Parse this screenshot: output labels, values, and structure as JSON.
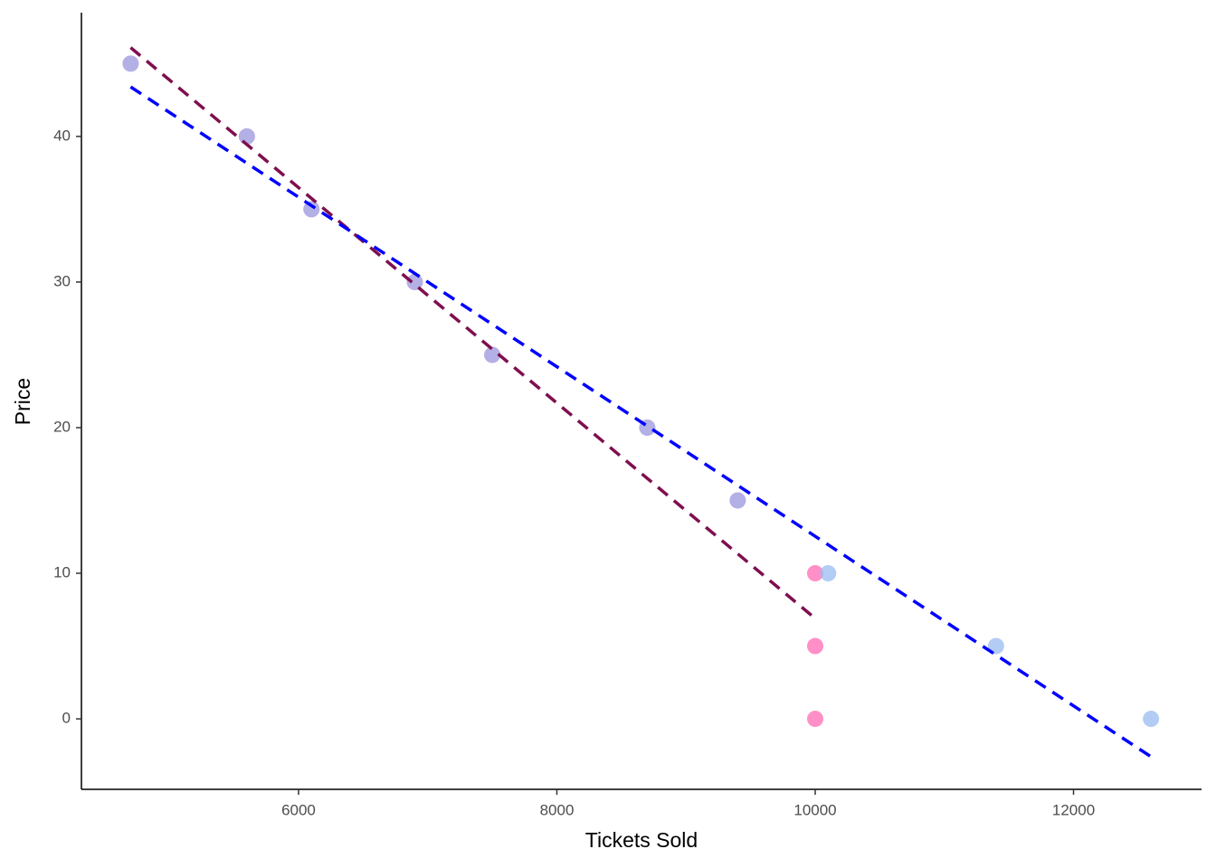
{
  "chart_data": {
    "type": "scatter",
    "xlabel": "Tickets Sold",
    "ylabel": "Price",
    "xlim": [
      4319,
      12991
    ],
    "ylim": [
      -4.84,
      48.5
    ],
    "xticks": [
      6000,
      8000,
      10000,
      12000
    ],
    "yticks": [
      0,
      10,
      20,
      30,
      40
    ],
    "grid": false,
    "series": [
      {
        "color": "#ff69b4",
        "x": [
          4700,
          5600,
          6100,
          6900,
          7500,
          8700,
          9400,
          10000,
          10000,
          10000
        ],
        "values": [
          45,
          40,
          35,
          30,
          25,
          20,
          15,
          10,
          5,
          0
        ]
      },
      {
        "color": "#99bbf0",
        "x": [
          4700,
          5600,
          6100,
          6900,
          7500,
          8700,
          9400,
          10100,
          11400,
          12600
        ],
        "values": [
          45,
          40,
          35,
          30,
          25,
          20,
          15,
          10,
          5,
          0
        ]
      }
    ],
    "fit_lines": [
      {
        "color": "#7f0f4f",
        "line_style": "dashed",
        "x": [
          4700,
          10000
        ],
        "values": [
          46.1,
          6.9
        ]
      },
      {
        "color": "#0000ff",
        "line_style": "dashed",
        "x": [
          4700,
          12600
        ],
        "values": [
          43.4,
          -2.6
        ]
      }
    ]
  }
}
